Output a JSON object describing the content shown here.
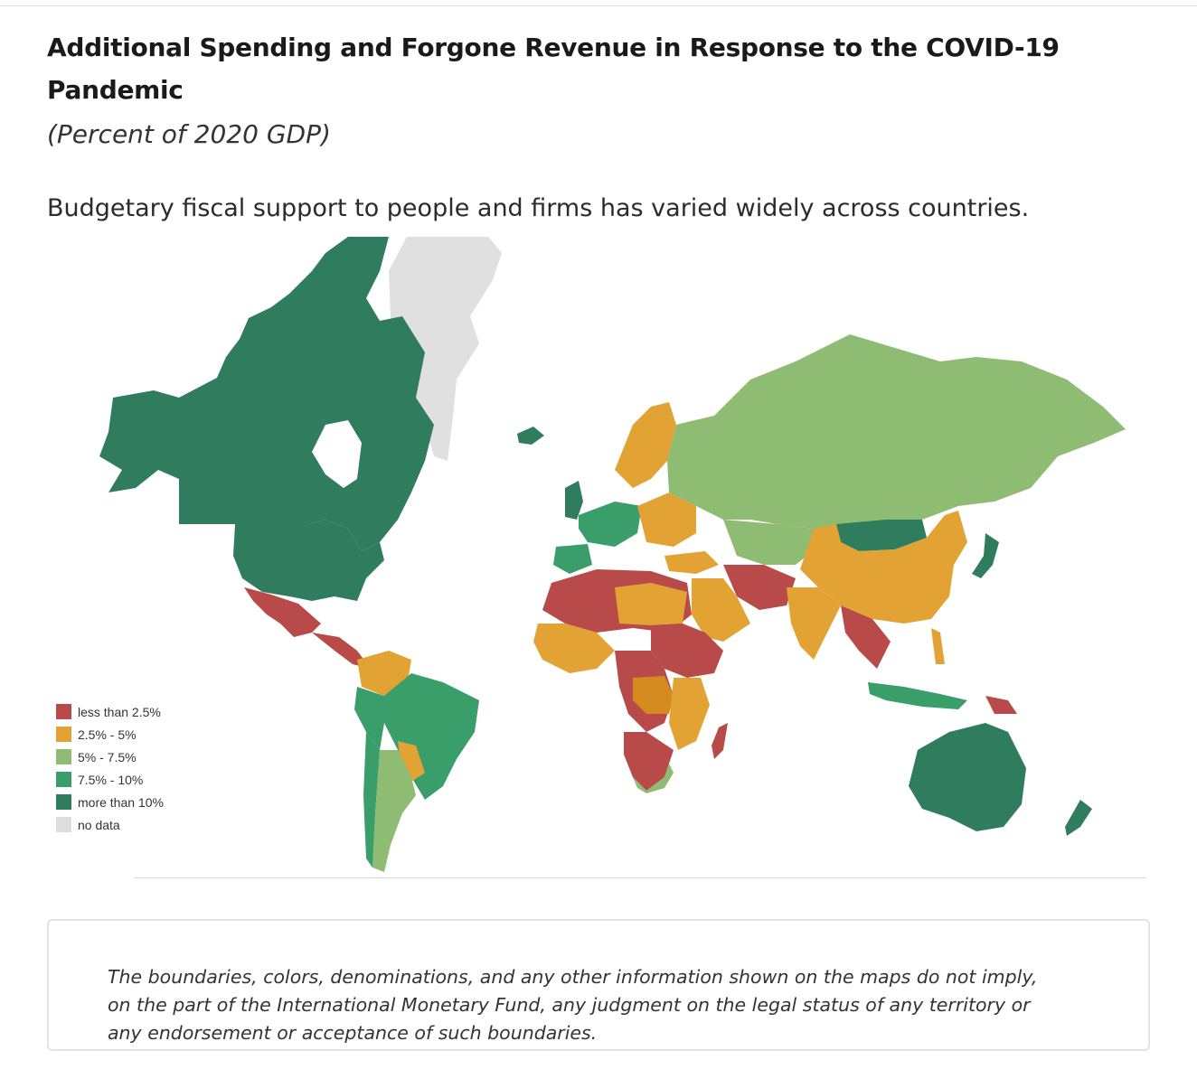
{
  "header": {
    "title": "Additional Spending and Forgone Revenue in Response to the COVID-19 Pandemic",
    "subtitle": "(Percent of 2020 GDP)",
    "lede": "Budgetary fiscal support to people and firms has varied widely across countries."
  },
  "legend": {
    "items": [
      {
        "label": "less than 2.5%",
        "color": "#b84a4a"
      },
      {
        "label": "2.5% - 5%",
        "color": "#e3a234"
      },
      {
        "label": "5% - 7.5%",
        "color": "#8fbc73"
      },
      {
        "label": "7.5% - 10%",
        "color": "#3a9e6a"
      },
      {
        "label": "more than 10%",
        "color": "#2f7d5e"
      },
      {
        "label": "no data",
        "color": "#dddddd"
      }
    ]
  },
  "disclaimer": {
    "text": "The boundaries, colors, denominations, and any other information shown on the maps do not imply, on the part of the International Monetary Fund, any judgment on the legal status of any territory or any endorsement or acceptance of such boundaries."
  }
}
